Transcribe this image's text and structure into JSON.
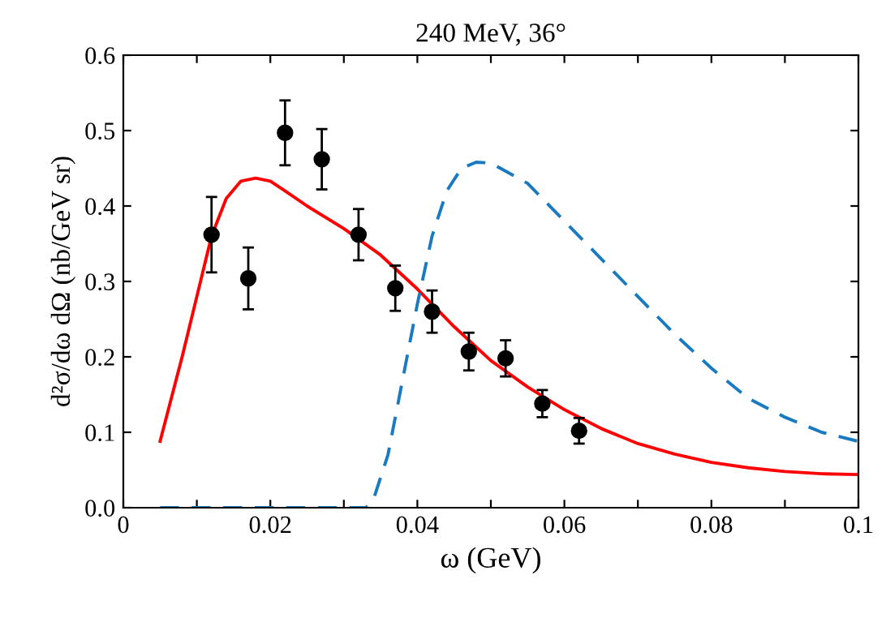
{
  "chart_data": {
    "type": "scatter",
    "title": "240 MeV, 36°",
    "xlabel": "ω (GeV)",
    "ylabel": "d²σ/dω dΩ (nb/GeV sr)",
    "xlim": [
      0,
      0.1
    ],
    "ylim": [
      0,
      0.6
    ],
    "xticks": [
      0,
      {
        "value": 0.01,
        "label": null
      },
      {
        "value": 0.02,
        "label": "0.02"
      },
      {
        "value": 0.03,
        "label": null
      },
      {
        "value": 0.04,
        "label": "0.04"
      },
      {
        "value": 0.05,
        "label": null
      },
      {
        "value": 0.06,
        "label": "0.06"
      },
      {
        "value": 0.07,
        "label": null
      },
      {
        "value": 0.08,
        "label": "0.08"
      },
      {
        "value": 0.09,
        "label": null
      },
      {
        "value": 0.1,
        "label": "0.1"
      }
    ],
    "yticks": [
      {
        "value": 0,
        "label": "0.0"
      },
      0.1,
      0.2,
      0.3,
      0.4,
      0.5,
      0.6
    ],
    "grid": false,
    "legend": false,
    "series": [
      {
        "type": "line",
        "color": "#ff0000",
        "line_style": "solid",
        "marker": "none",
        "x": [
          0.005,
          0.008,
          0.01,
          0.012,
          0.014,
          0.016,
          0.018,
          0.02,
          0.022,
          0.025,
          0.03,
          0.035,
          0.04,
          0.045,
          0.05,
          0.055,
          0.06,
          0.065,
          0.07,
          0.075,
          0.08,
          0.085,
          0.09,
          0.095,
          0.1
        ],
        "values": [
          0.088,
          0.2,
          0.28,
          0.36,
          0.41,
          0.433,
          0.437,
          0.433,
          0.42,
          0.4,
          0.37,
          0.335,
          0.29,
          0.24,
          0.195,
          0.16,
          0.13,
          0.105,
          0.085,
          0.071,
          0.06,
          0.053,
          0.048,
          0.045,
          0.044
        ]
      },
      {
        "type": "line",
        "color": "#1a7ac0",
        "line_style": "dashed",
        "marker": "none",
        "x": [
          0.005,
          0.01,
          0.02,
          0.03,
          0.033,
          0.034,
          0.036,
          0.038,
          0.04,
          0.042,
          0.044,
          0.046,
          0.048,
          0.05,
          0.055,
          0.06,
          0.065,
          0.07,
          0.075,
          0.08,
          0.085,
          0.09,
          0.095,
          0.1
        ],
        "values": [
          0,
          0,
          0,
          0,
          0,
          0.01,
          0.07,
          0.17,
          0.27,
          0.36,
          0.42,
          0.45,
          0.458,
          0.457,
          0.43,
          0.38,
          0.33,
          0.28,
          0.23,
          0.185,
          0.145,
          0.12,
          0.1,
          0.088
        ]
      },
      {
        "color": "#000000",
        "marker": "circle",
        "x": [
          0.012,
          0.017,
          0.022,
          0.027,
          0.032,
          0.037,
          0.042,
          0.047,
          0.052,
          0.057,
          0.062
        ],
        "values": [
          0.362,
          0.304,
          0.497,
          0.462,
          0.362,
          0.291,
          0.26,
          0.207,
          0.198,
          0.138,
          0.102
        ],
        "errors": [
          0.05,
          0.041,
          0.043,
          0.04,
          0.034,
          0.03,
          0.028,
          0.025,
          0.024,
          0.018,
          0.017
        ]
      }
    ]
  }
}
